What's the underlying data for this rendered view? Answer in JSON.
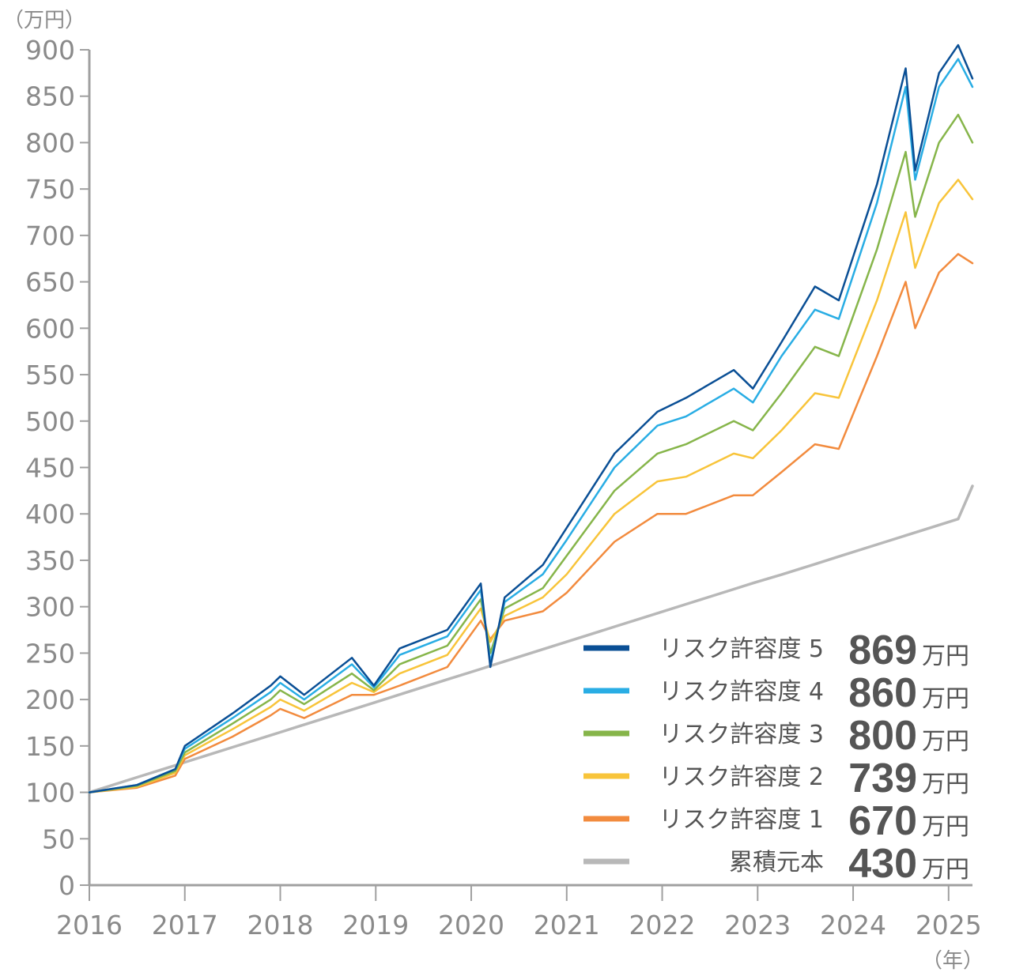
{
  "chart_data": {
    "type": "line",
    "y_unit_label": "（万円）",
    "x_unit_label": "（年）",
    "ylim": [
      0,
      900
    ],
    "yticks": [
      0,
      50,
      100,
      150,
      200,
      250,
      300,
      350,
      400,
      450,
      500,
      550,
      600,
      650,
      700,
      750,
      800,
      850,
      900
    ],
    "xlim": [
      2016.0,
      2025.25
    ],
    "xticks": [
      "2016",
      "2017",
      "2018",
      "2019",
      "2020",
      "2021",
      "2022",
      "2023",
      "2024",
      "2025"
    ],
    "grid": false,
    "legend_position": "bottom-right",
    "legend_unit": "万円",
    "x": [
      2016.0,
      2016.5,
      2016.9,
      2017.0,
      2017.5,
      2017.9,
      2018.0,
      2018.25,
      2018.75,
      2018.98,
      2019.25,
      2019.75,
      2020.1,
      2020.2,
      2020.35,
      2020.75,
      2021.0,
      2021.5,
      2021.95,
      2022.25,
      2022.75,
      2022.95,
      2023.25,
      2023.6,
      2023.85,
      2024.25,
      2024.55,
      2024.65,
      2024.9,
      2025.1,
      2025.25
    ],
    "series": [
      {
        "name": "リスク許容度 5",
        "final_value": "869",
        "color": "#0a4f95",
        "values": [
          100,
          108,
          125,
          150,
          185,
          215,
          225,
          205,
          245,
          215,
          255,
          275,
          325,
          235,
          310,
          345,
          385,
          465,
          510,
          525,
          555,
          535,
          585,
          645,
          630,
          755,
          880,
          770,
          875,
          905,
          869
        ]
      },
      {
        "name": "リスク許容度 4",
        "final_value": "860",
        "color": "#29ade4",
        "values": [
          100,
          108,
          125,
          147,
          180,
          208,
          218,
          200,
          238,
          213,
          248,
          268,
          318,
          240,
          305,
          335,
          372,
          450,
          495,
          505,
          535,
          520,
          570,
          620,
          610,
          735,
          860,
          760,
          860,
          890,
          860
        ]
      },
      {
        "name": "リスク許容度 3",
        "final_value": "800",
        "color": "#86b54a",
        "values": [
          100,
          107,
          123,
          143,
          174,
          200,
          210,
          195,
          228,
          210,
          238,
          258,
          308,
          250,
          298,
          320,
          355,
          425,
          465,
          475,
          500,
          490,
          530,
          580,
          570,
          685,
          790,
          720,
          800,
          830,
          800
        ]
      },
      {
        "name": "リスク許容度 2",
        "final_value": "739",
        "color": "#f8c43a",
        "values": [
          100,
          106,
          121,
          140,
          168,
          192,
          200,
          188,
          218,
          208,
          228,
          248,
          298,
          262,
          290,
          310,
          335,
          400,
          435,
          440,
          465,
          460,
          490,
          530,
          525,
          630,
          725,
          665,
          735,
          760,
          739
        ]
      },
      {
        "name": "リスク許容度 1",
        "final_value": "670",
        "color": "#f28b3e",
        "values": [
          100,
          105,
          118,
          136,
          160,
          183,
          190,
          180,
          205,
          205,
          215,
          235,
          285,
          265,
          285,
          295,
          315,
          370,
          400,
          400,
          420,
          420,
          445,
          475,
          470,
          570,
          650,
          600,
          660,
          680,
          670
        ]
      },
      {
        "name": "累積元本",
        "final_value": "430",
        "color": "#b8b8b8",
        "values": [
          100,
          116.2,
          129.1,
          132.4,
          148.6,
          161.5,
          164.8,
          172.9,
          189.1,
          196.5,
          205.4,
          221.6,
          232.9,
          236.2,
          241.1,
          254.1,
          262.2,
          278.4,
          293.0,
          302.7,
          318.9,
          325.4,
          334.5,
          345.9,
          354.0,
          367.0,
          376.7,
          379.9,
          388.0,
          394.5,
          430
        ]
      }
    ]
  }
}
